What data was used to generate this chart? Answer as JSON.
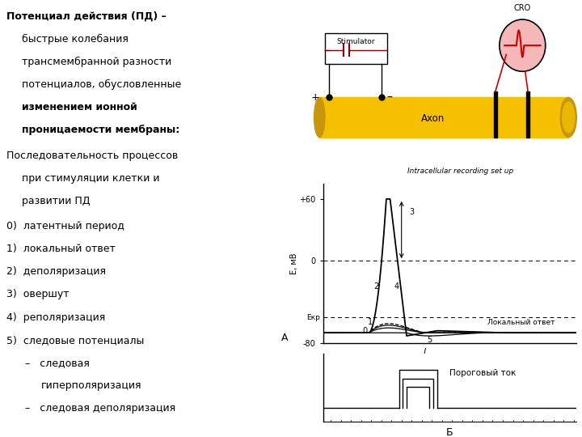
{
  "bg_color": "#ffffff",
  "text_color": "#000000",
  "axon_color": "#f5c000",
  "axon_dark": "#c8960a",
  "cro_fill": "#f5b8b8",
  "wire_color": "#8b0000",
  "graph_ylim": [
    -80,
    70
  ],
  "ekr_value": -55,
  "ylabel": "E, мВ",
  "label_A": "А",
  "label_B": "Б",
  "lokalniy_otvet": "Локальный ответ",
  "porogoviy_tok": "Пороговый ток",
  "ekr_label": "Екр",
  "stimulator_label": "Stimulator",
  "axon_label": "Axon",
  "cro_label": "CRO",
  "intracell_label": "Intracellular recording set up"
}
